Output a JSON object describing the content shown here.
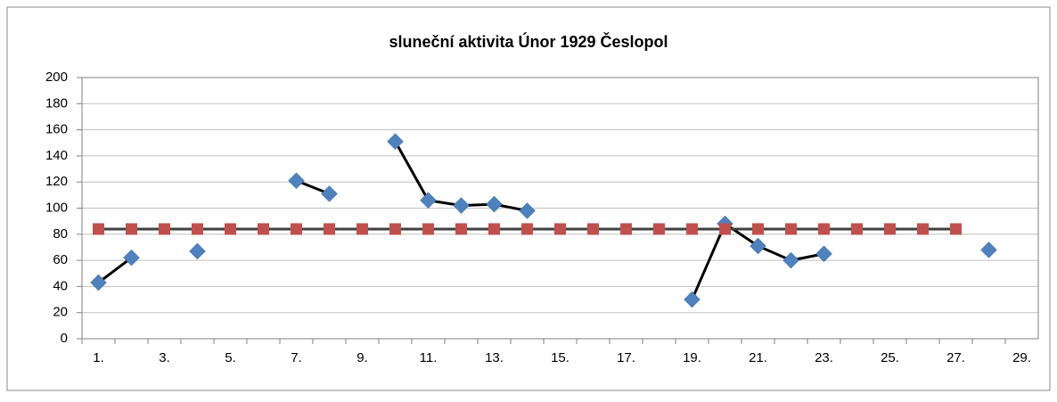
{
  "chart_data": {
    "type": "line",
    "title": "sluneční aktivita Únor 1929 Česlopol",
    "categories": [
      "1.",
      null,
      "3.",
      null,
      "5.",
      null,
      "7.",
      null,
      "9.",
      null,
      "11.",
      null,
      "13.",
      null,
      "15.",
      null,
      "17.",
      null,
      "19.",
      null,
      "21.",
      null,
      "23.",
      null,
      "25.",
      null,
      "27.",
      null,
      "29."
    ],
    "series": [
      {
        "color": "#4f81bd",
        "line_color": "#000000",
        "marker": "diamond",
        "values": [
          43,
          62,
          null,
          67,
          null,
          null,
          121,
          111,
          null,
          151,
          106,
          102,
          103,
          98,
          null,
          null,
          null,
          null,
          30,
          88,
          71,
          60,
          65,
          null,
          null,
          null,
          null,
          68,
          null
        ]
      },
      {
        "color": "#c0504d",
        "line_color": "#404040",
        "marker": "square",
        "values": [
          84,
          84,
          84,
          84,
          84,
          84,
          84,
          84,
          84,
          84,
          84,
          84,
          84,
          84,
          84,
          84,
          84,
          84,
          84,
          84,
          84,
          84,
          84,
          84,
          84,
          84,
          84,
          null,
          null
        ]
      }
    ],
    "ylim": [
      0,
      200
    ],
    "yticks": [
      0,
      20,
      40,
      60,
      80,
      100,
      120,
      140,
      160,
      180,
      200
    ],
    "grid": true
  }
}
